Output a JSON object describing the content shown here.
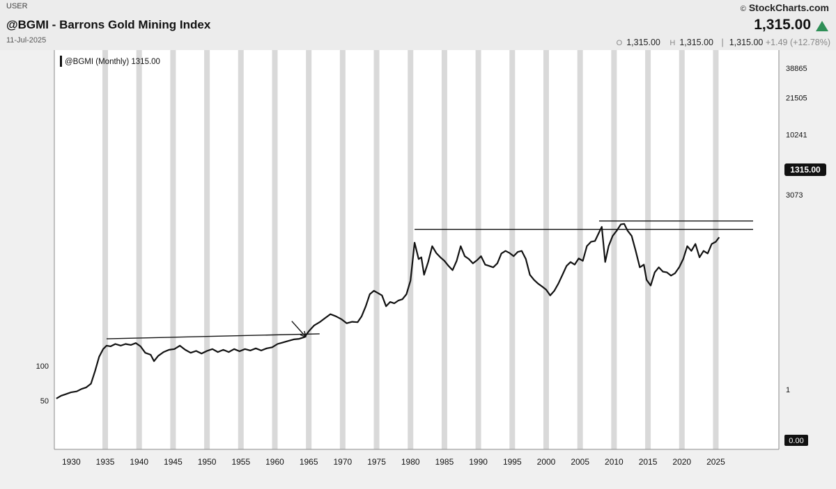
{
  "header": {
    "exchange": "USER",
    "title": "@BGMI - Barrons Gold Mining Index",
    "date": "11-Jul-2025",
    "logo": "StockCharts.com",
    "copyright": "©",
    "price": "1,315.00",
    "stats": {
      "open_label": "O",
      "open": "1,315.00",
      "high_label": "H",
      "high": "1,315.00",
      "low": "1,315.00",
      "change": "+1.49 (+12.78%)"
    }
  },
  "colors": {
    "up": "#2f8f57",
    "line": "#111111",
    "band": "#d9d9d9",
    "plot_bg": "#ffffff"
  },
  "chart_data": {
    "type": "line",
    "legend": "@BGMI (Monthly) 1315.00",
    "last_value_label": "1315.00",
    "xlim": [
      1927.5,
      2034.3
    ],
    "ylim": [
      100,
      38865
    ],
    "x_ticks": [
      "1930",
      "1935",
      "1940",
      "1945",
      "1950",
      "1955",
      "1960",
      "1965",
      "1970",
      "1975",
      "1980",
      "1985",
      "1990",
      "1995",
      "2000",
      "2005",
      "2010",
      "2015",
      "2020",
      "2025"
    ],
    "y_ticks_left": [
      "100",
      "50"
    ],
    "y_ticks_right": [
      "38865",
      "21505",
      "10241",
      "3073"
    ],
    "right_axis_extra": [
      "1",
      "0.00"
    ],
    "series": [
      {
        "points": [
          [
            1927.8,
            52
          ],
          [
            1928.5,
            55
          ],
          [
            1929.3,
            57
          ],
          [
            1930.0,
            59
          ],
          [
            1930.8,
            60
          ],
          [
            1931.5,
            63
          ],
          [
            1932.2,
            65
          ],
          [
            1932.9,
            70
          ],
          [
            1933.5,
            90
          ],
          [
            1934.1,
            120
          ],
          [
            1934.7,
            140
          ],
          [
            1935.2,
            150
          ],
          [
            1935.8,
            148
          ],
          [
            1936.5,
            155
          ],
          [
            1937.3,
            150
          ],
          [
            1938.0,
            155
          ],
          [
            1938.8,
            152
          ],
          [
            1939.5,
            158
          ],
          [
            1940.2,
            148
          ],
          [
            1940.9,
            130
          ],
          [
            1941.7,
            125
          ],
          [
            1942.2,
            110
          ],
          [
            1942.8,
            122
          ],
          [
            1943.6,
            132
          ],
          [
            1944.4,
            138
          ],
          [
            1945.2,
            140
          ],
          [
            1946.0,
            150
          ],
          [
            1946.8,
            138
          ],
          [
            1947.6,
            130
          ],
          [
            1948.4,
            135
          ],
          [
            1949.2,
            128
          ],
          [
            1950.0,
            135
          ],
          [
            1950.8,
            140
          ],
          [
            1951.6,
            132
          ],
          [
            1952.4,
            138
          ],
          [
            1953.2,
            132
          ],
          [
            1954.0,
            140
          ],
          [
            1954.8,
            134
          ],
          [
            1955.6,
            140
          ],
          [
            1956.4,
            136
          ],
          [
            1957.2,
            142
          ],
          [
            1958.0,
            136
          ],
          [
            1958.8,
            142
          ],
          [
            1959.6,
            145
          ],
          [
            1960.4,
            155
          ],
          [
            1961.2,
            160
          ],
          [
            1962.0,
            165
          ],
          [
            1962.8,
            170
          ],
          [
            1963.6,
            172
          ],
          [
            1964.4,
            178
          ],
          [
            1965.0,
            200
          ],
          [
            1965.8,
            225
          ],
          [
            1966.6,
            240
          ],
          [
            1967.4,
            260
          ],
          [
            1968.2,
            282
          ],
          [
            1969.0,
            270
          ],
          [
            1969.8,
            255
          ],
          [
            1970.6,
            235
          ],
          [
            1971.4,
            242
          ],
          [
            1972.2,
            240
          ],
          [
            1972.8,
            270
          ],
          [
            1973.4,
            330
          ],
          [
            1974.0,
            420
          ],
          [
            1974.6,
            450
          ],
          [
            1975.2,
            430
          ],
          [
            1975.8,
            410
          ],
          [
            1976.4,
            330
          ],
          [
            1977.0,
            360
          ],
          [
            1977.6,
            350
          ],
          [
            1978.2,
            370
          ],
          [
            1978.8,
            380
          ],
          [
            1979.4,
            420
          ],
          [
            1980.0,
            550
          ],
          [
            1980.6,
            1180
          ],
          [
            1981.2,
            850
          ],
          [
            1981.6,
            880
          ],
          [
            1982.0,
            620
          ],
          [
            1982.6,
            800
          ],
          [
            1983.2,
            1100
          ],
          [
            1983.8,
            960
          ],
          [
            1984.4,
            880
          ],
          [
            1985.0,
            820
          ],
          [
            1985.6,
            740
          ],
          [
            1986.2,
            680
          ],
          [
            1986.8,
            820
          ],
          [
            1987.4,
            1100
          ],
          [
            1988.0,
            900
          ],
          [
            1988.6,
            850
          ],
          [
            1989.2,
            780
          ],
          [
            1989.8,
            830
          ],
          [
            1990.4,
            900
          ],
          [
            1991.0,
            760
          ],
          [
            1991.6,
            740
          ],
          [
            1992.2,
            720
          ],
          [
            1992.8,
            780
          ],
          [
            1993.4,
            950
          ],
          [
            1994.0,
            1000
          ],
          [
            1994.6,
            960
          ],
          [
            1995.2,
            900
          ],
          [
            1995.8,
            980
          ],
          [
            1996.4,
            1000
          ],
          [
            1997.0,
            850
          ],
          [
            1997.6,
            620
          ],
          [
            1998.2,
            560
          ],
          [
            1998.8,
            520
          ],
          [
            1999.4,
            490
          ],
          [
            2000.0,
            460
          ],
          [
            2000.6,
            410
          ],
          [
            2001.2,
            450
          ],
          [
            2001.8,
            520
          ],
          [
            2002.4,
            620
          ],
          [
            2003.0,
            740
          ],
          [
            2003.6,
            800
          ],
          [
            2004.2,
            760
          ],
          [
            2004.8,
            860
          ],
          [
            2005.4,
            820
          ],
          [
            2006.0,
            1100
          ],
          [
            2006.6,
            1200
          ],
          [
            2007.2,
            1220
          ],
          [
            2007.8,
            1450
          ],
          [
            2008.2,
            1620
          ],
          [
            2008.7,
            800
          ],
          [
            2009.2,
            1100
          ],
          [
            2009.8,
            1350
          ],
          [
            2010.4,
            1500
          ],
          [
            2011.0,
            1700
          ],
          [
            2011.5,
            1720
          ],
          [
            2012.0,
            1500
          ],
          [
            2012.6,
            1350
          ],
          [
            2013.2,
            1000
          ],
          [
            2013.8,
            720
          ],
          [
            2014.4,
            760
          ],
          [
            2014.8,
            560
          ],
          [
            2015.4,
            500
          ],
          [
            2016.0,
            650
          ],
          [
            2016.6,
            720
          ],
          [
            2017.2,
            660
          ],
          [
            2017.8,
            650
          ],
          [
            2018.4,
            610
          ],
          [
            2019.0,
            640
          ],
          [
            2019.6,
            720
          ],
          [
            2020.2,
            850
          ],
          [
            2020.8,
            1100
          ],
          [
            2021.4,
            1000
          ],
          [
            2022.0,
            1150
          ],
          [
            2022.6,
            880
          ],
          [
            2023.2,
            1000
          ],
          [
            2023.8,
            950
          ],
          [
            2024.4,
            1150
          ],
          [
            2025.0,
            1200
          ],
          [
            2025.5,
            1315
          ]
        ]
      }
    ],
    "annotations": [
      {
        "type": "trendline",
        "points": [
          [
            1935.2,
            172
          ],
          [
            1966.6,
            190
          ]
        ]
      },
      {
        "type": "trendline",
        "points": [
          [
            1980.6,
            1540
          ],
          [
            2030.5,
            1540
          ]
        ]
      },
      {
        "type": "trendline",
        "points": [
          [
            2007.8,
            1820
          ],
          [
            2030.5,
            1820
          ]
        ]
      },
      {
        "type": "arrow",
        "from": [
          1962.5,
          245
        ],
        "to": [
          1964.6,
          178
        ]
      }
    ]
  }
}
